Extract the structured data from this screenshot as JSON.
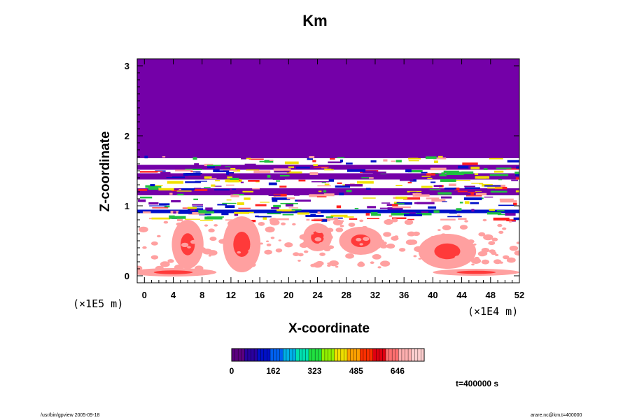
{
  "chart_data": {
    "type": "heatmap",
    "title": "Km",
    "xlabel": "X-coordinate",
    "ylabel": "Z-coordinate",
    "x_unit": "(×1E4 m)",
    "y_unit": "(×1E5 m)",
    "x_ticks": [
      "0",
      "4",
      "8",
      "12",
      "16",
      "20",
      "24",
      "28",
      "32",
      "36",
      "40",
      "44",
      "48",
      "52"
    ],
    "y_ticks": [
      "0",
      "1",
      "2",
      "3"
    ],
    "xlim": [
      -1,
      52
    ],
    "ylim": [
      -0.1,
      3.1
    ],
    "colorbar": {
      "ticks": [
        "0",
        "162",
        "323",
        "485",
        "646"
      ],
      "tick_values": [
        0,
        162,
        323,
        485,
        646
      ],
      "range": [
        0,
        750
      ],
      "colors": [
        "#5c0080",
        "#2a00a0",
        "#0010c8",
        "#0060f0",
        "#00b0e8",
        "#00e0b0",
        "#20e040",
        "#90f000",
        "#f0e000",
        "#ffa000",
        "#ff3000",
        "#e00010",
        "#ff7070",
        "#ffb0b0",
        "#ffd0d0"
      ]
    },
    "fill_value_upper": 0,
    "description_note": "Model eddy coefficient Km field; value near 0 above z=1.7 (purple), layered structure between z=0.8 and 1.7, pinkish-red turbulent patches below z=0.8.",
    "time_label": "t=400000 s"
  },
  "footer": {
    "left": "/usr/bin/gpview 2005-09-18",
    "right": "arare.nc@km,t=400000"
  },
  "colors": {
    "purple": "#7400a8",
    "white": "#ffffff",
    "pink": "#ffa0a0",
    "red": "#ff2020",
    "green": "#20c040",
    "blue": "#0010c8",
    "yellow": "#f0e000"
  }
}
